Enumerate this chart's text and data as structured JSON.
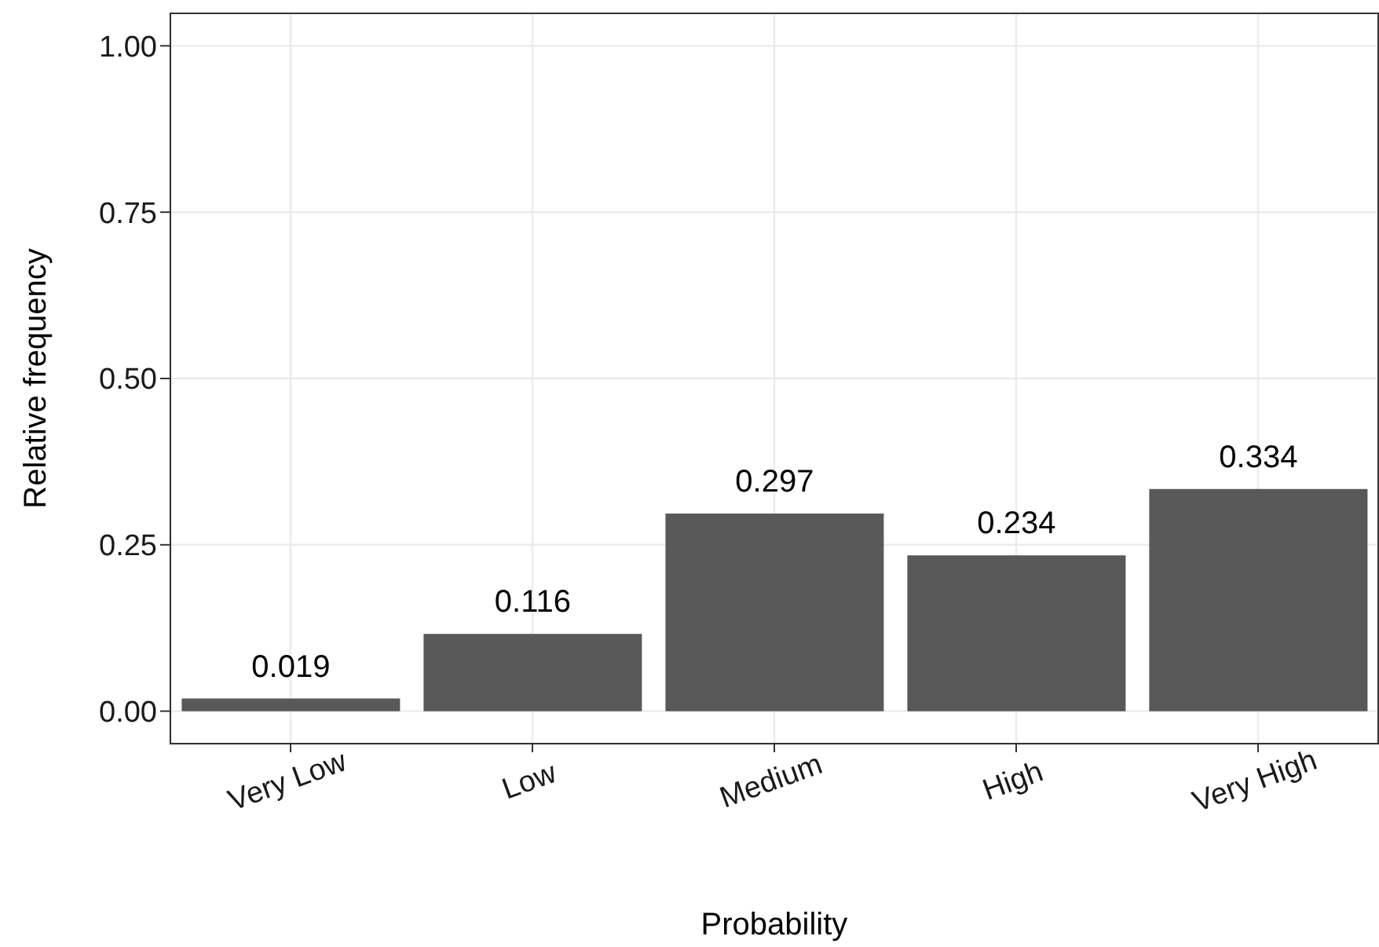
{
  "chart_data": {
    "type": "bar",
    "xlabel": "Probability",
    "ylabel": "Relative frequency",
    "categories": [
      "Very Low",
      "Low",
      "Medium",
      "High",
      "Very High"
    ],
    "values": [
      0.019,
      0.116,
      0.297,
      0.234,
      0.334
    ],
    "color": "#595959",
    "ylim": [
      -0.05,
      1.05
    ],
    "yticks": [
      {
        "value": 0,
        "label": "0.00"
      },
      {
        "value": 0.25,
        "label": "0.25"
      },
      {
        "value": 0.5,
        "label": "0.50"
      },
      {
        "value": 0.75,
        "label": "0.75"
      },
      {
        "value": 1,
        "label": "1.00"
      }
    ],
    "grid": true,
    "data_labels": true
  }
}
